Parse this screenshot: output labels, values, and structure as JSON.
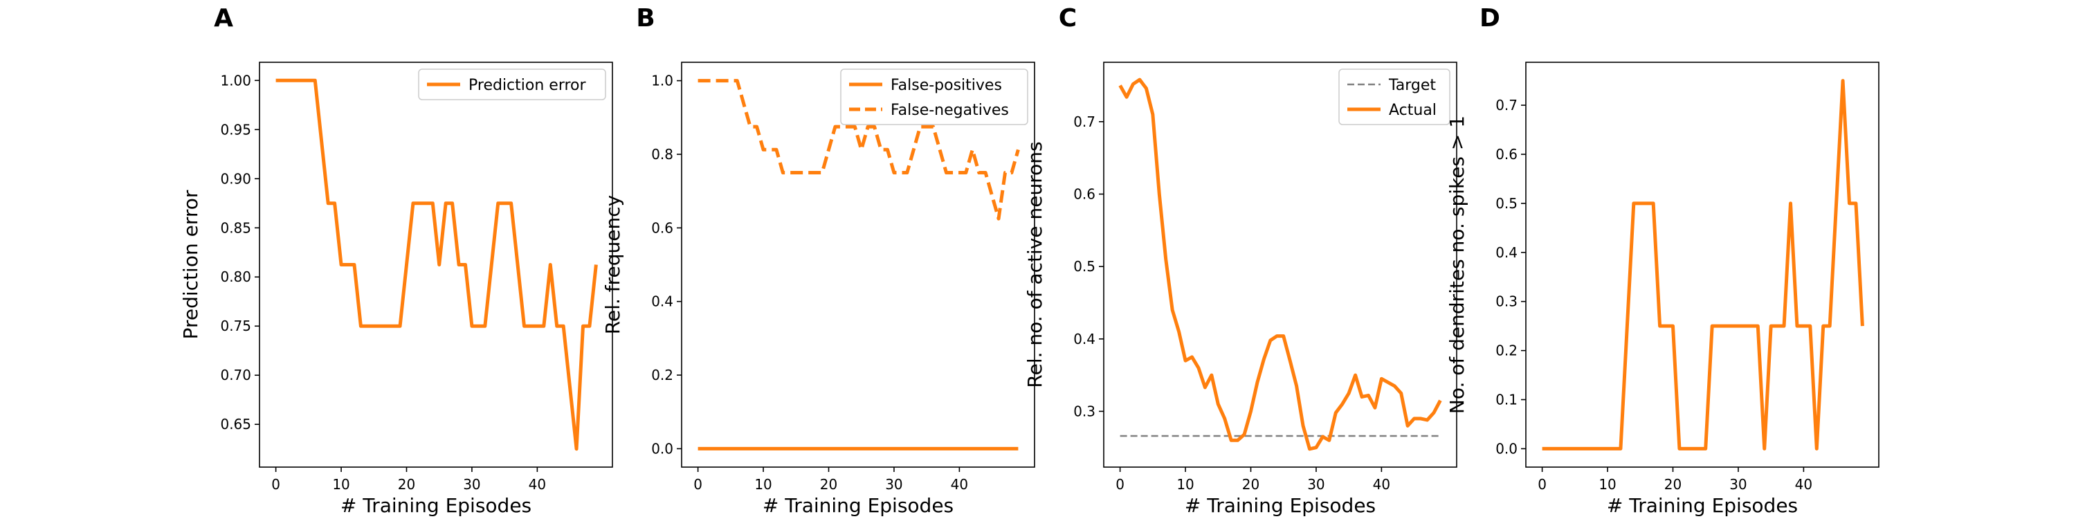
{
  "colors": {
    "series": "#ff7f0e",
    "target": "#808080",
    "axis": "#000000",
    "legend_border": "#cccccc"
  },
  "chart_data": [
    {
      "panel": "A",
      "type": "line",
      "xlabel": "# Training Episodes",
      "ylabel": "Prediction error",
      "xlim": [
        -2.5,
        51.5
      ],
      "ylim": [
        0.6065,
        1.0185
      ],
      "xticks": [
        0,
        10,
        20,
        30,
        40
      ],
      "yticks": [
        0.65,
        0.7,
        0.75,
        0.8,
        0.85,
        0.9,
        0.95,
        1.0
      ],
      "ytick_labels": [
        "0.65",
        "0.70",
        "0.75",
        "0.80",
        "0.85",
        "0.90",
        "0.95",
        "1.00"
      ],
      "legend": "top-right",
      "series": [
        {
          "name": "Prediction error",
          "style": "solid",
          "x": [
            0,
            1,
            2,
            3,
            4,
            5,
            6,
            7,
            8,
            9,
            10,
            11,
            12,
            13,
            14,
            15,
            16,
            17,
            18,
            19,
            20,
            21,
            22,
            23,
            24,
            25,
            26,
            27,
            28,
            29,
            30,
            31,
            32,
            33,
            34,
            35,
            36,
            37,
            38,
            39,
            40,
            41,
            42,
            43,
            44,
            45,
            46,
            47,
            48,
            49
          ],
          "y": [
            1.0,
            1.0,
            1.0,
            1.0,
            1.0,
            1.0,
            1.0,
            0.9375,
            0.875,
            0.875,
            0.8125,
            0.8125,
            0.8125,
            0.75,
            0.75,
            0.75,
            0.75,
            0.75,
            0.75,
            0.75,
            0.8125,
            0.875,
            0.875,
            0.875,
            0.875,
            0.8125,
            0.875,
            0.875,
            0.8125,
            0.8125,
            0.75,
            0.75,
            0.75,
            0.8125,
            0.875,
            0.875,
            0.875,
            0.8125,
            0.75,
            0.75,
            0.75,
            0.75,
            0.8125,
            0.75,
            0.75,
            0.6875,
            0.625,
            0.75,
            0.75,
            0.8125
          ]
        }
      ]
    },
    {
      "panel": "B",
      "type": "line",
      "xlabel": "# Training Episodes",
      "ylabel": "Rel. frequency",
      "xlim": [
        -2.5,
        51.5
      ],
      "ylim": [
        -0.05,
        1.05
      ],
      "xticks": [
        0,
        10,
        20,
        30,
        40
      ],
      "yticks": [
        0.0,
        0.2,
        0.4,
        0.6,
        0.8,
        1.0
      ],
      "ytick_labels": [
        "0.0",
        "0.2",
        "0.4",
        "0.6",
        "0.8",
        "1.0"
      ],
      "legend": "top-right",
      "series": [
        {
          "name": "False-positives",
          "style": "solid",
          "x": [
            0,
            49
          ],
          "y": [
            0.0,
            0.0
          ]
        },
        {
          "name": "False-negatives",
          "style": "dashed",
          "x": [
            0,
            1,
            2,
            3,
            4,
            5,
            6,
            7,
            8,
            9,
            10,
            11,
            12,
            13,
            14,
            15,
            16,
            17,
            18,
            19,
            20,
            21,
            22,
            23,
            24,
            25,
            26,
            27,
            28,
            29,
            30,
            31,
            32,
            33,
            34,
            35,
            36,
            37,
            38,
            39,
            40,
            41,
            42,
            43,
            44,
            45,
            46,
            47,
            48,
            49
          ],
          "y": [
            1.0,
            1.0,
            1.0,
            1.0,
            1.0,
            1.0,
            1.0,
            0.9375,
            0.875,
            0.875,
            0.8125,
            0.8125,
            0.8125,
            0.75,
            0.75,
            0.75,
            0.75,
            0.75,
            0.75,
            0.75,
            0.8125,
            0.875,
            0.875,
            0.875,
            0.875,
            0.8125,
            0.875,
            0.875,
            0.8125,
            0.8125,
            0.75,
            0.75,
            0.75,
            0.8125,
            0.875,
            0.875,
            0.875,
            0.8125,
            0.75,
            0.75,
            0.75,
            0.75,
            0.8125,
            0.75,
            0.75,
            0.6875,
            0.625,
            0.75,
            0.75,
            0.8125
          ]
        }
      ]
    },
    {
      "panel": "C",
      "type": "line",
      "xlabel": "# Training Episodes",
      "ylabel": "Rel. no. of active neurons",
      "xlim": [
        -2.5,
        51.5
      ],
      "ylim": [
        0.223,
        0.782
      ],
      "xticks": [
        0,
        10,
        20,
        30,
        40
      ],
      "yticks": [
        0.3,
        0.4,
        0.5,
        0.6,
        0.7
      ],
      "ytick_labels": [
        "0.3",
        "0.4",
        "0.5",
        "0.6",
        "0.7"
      ],
      "legend": "top-right",
      "series": [
        {
          "name": "Target",
          "style": "dashed-thin",
          "x": [
            0,
            49
          ],
          "y": [
            0.266,
            0.266
          ]
        },
        {
          "name": "Actual",
          "style": "solid",
          "x": [
            0,
            1,
            2,
            3,
            4,
            5,
            6,
            7,
            8,
            9,
            10,
            11,
            12,
            13,
            14,
            15,
            16,
            17,
            18,
            19,
            20,
            21,
            22,
            23,
            24,
            25,
            26,
            27,
            28,
            29,
            30,
            31,
            32,
            33,
            34,
            35,
            36,
            37,
            38,
            39,
            40,
            41,
            42,
            43,
            44,
            45,
            46,
            47,
            48,
            49
          ],
          "y": [
            0.75,
            0.734,
            0.752,
            0.758,
            0.746,
            0.71,
            0.6,
            0.51,
            0.44,
            0.41,
            0.37,
            0.375,
            0.36,
            0.333,
            0.35,
            0.31,
            0.29,
            0.26,
            0.26,
            0.268,
            0.3,
            0.34,
            0.372,
            0.398,
            0.404,
            0.404,
            0.37,
            0.335,
            0.28,
            0.248,
            0.25,
            0.265,
            0.26,
            0.298,
            0.31,
            0.325,
            0.35,
            0.32,
            0.322,
            0.305,
            0.345,
            0.34,
            0.335,
            0.325,
            0.28,
            0.29,
            0.29,
            0.288,
            0.298,
            0.315
          ]
        }
      ]
    },
    {
      "panel": "D",
      "type": "line",
      "xlabel": "# Training Episodes",
      "ylabel": "No. of dendrites no. spikes > 1",
      "xlim": [
        -2.5,
        51.5
      ],
      "ylim": [
        -0.0375,
        0.7875
      ],
      "xticks": [
        0,
        10,
        20,
        30,
        40
      ],
      "yticks": [
        0.0,
        0.1,
        0.2,
        0.3,
        0.4,
        0.5,
        0.6,
        0.7
      ],
      "ytick_labels": [
        "0.0",
        "0.1",
        "0.2",
        "0.3",
        "0.4",
        "0.5",
        "0.6",
        "0.7"
      ],
      "legend": "none",
      "series": [
        {
          "name": "",
          "style": "solid",
          "x": [
            0,
            1,
            2,
            3,
            4,
            5,
            6,
            7,
            8,
            9,
            10,
            11,
            12,
            13,
            14,
            15,
            16,
            17,
            18,
            19,
            20,
            21,
            22,
            23,
            24,
            25,
            26,
            27,
            28,
            29,
            30,
            31,
            32,
            33,
            34,
            35,
            36,
            37,
            38,
            39,
            40,
            41,
            42,
            43,
            44,
            45,
            46,
            47,
            48,
            49
          ],
          "y": [
            0,
            0,
            0,
            0,
            0,
            0,
            0,
            0,
            0,
            0,
            0,
            0,
            0,
            0.25,
            0.5,
            0.5,
            0.5,
            0.5,
            0.25,
            0.25,
            0.25,
            0,
            0,
            0,
            0,
            0,
            0.25,
            0.25,
            0.25,
            0.25,
            0.25,
            0.25,
            0.25,
            0.25,
            0,
            0.25,
            0.25,
            0.25,
            0.5,
            0.25,
            0.25,
            0.25,
            0,
            0.25,
            0.25,
            0.5,
            0.75,
            0.5,
            0.5,
            0.25
          ]
        }
      ]
    }
  ]
}
